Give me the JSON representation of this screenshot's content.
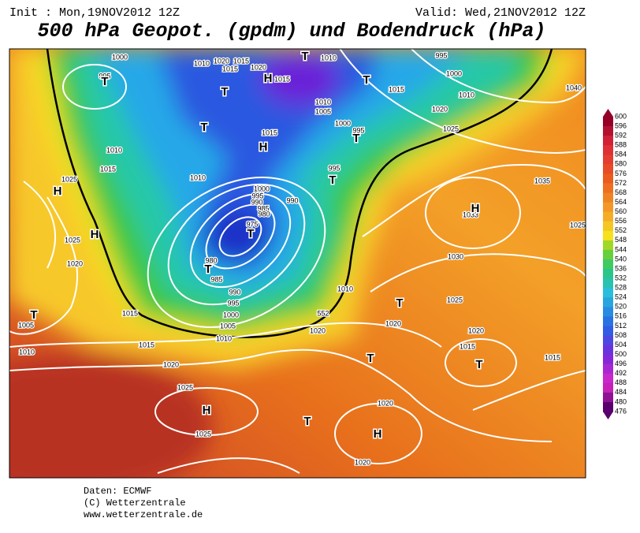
{
  "header": {
    "init": "Init : Mon,19NOV2012 12Z",
    "valid": "Valid: Wed,21NOV2012 12Z",
    "title": "500 hPa Geopot. (gpdm) und Bodendruck (hPa)"
  },
  "map": {
    "isobar_labels": [
      "1000",
      "995",
      "1010",
      "1020",
      "1015",
      "1015",
      "1020",
      "1015",
      "1010",
      "995",
      "1000",
      "1015",
      "1010",
      "1020",
      "1025",
      "1040",
      "1010",
      "1005",
      "1000",
      "995",
      "1015",
      "1010",
      "1015",
      "1025",
      "995",
      "1000",
      "995",
      "990",
      "985",
      "980",
      "975",
      "990",
      "1010",
      "980",
      "985",
      "990",
      "995",
      "1000",
      "1005",
      "1010",
      "1020",
      "1025",
      "1015",
      "1005",
      "1010",
      "1015",
      "1020",
      "1025",
      "1025",
      "1020",
      "1020",
      "1010",
      "1020",
      "1020",
      "1025",
      "1020",
      "1015",
      "1015",
      "1030",
      "1035",
      "1033",
      "1025"
    ],
    "centers": [
      "T",
      "T",
      "T",
      "T",
      "T",
      "H",
      "H",
      "T",
      "T",
      "H",
      "H",
      "T",
      "T",
      "T",
      "T",
      "T",
      "T",
      "H",
      "T",
      "H",
      "H"
    ],
    "contour_label": "552"
  },
  "colorbar": {
    "labels": [
      600,
      596,
      592,
      588,
      584,
      580,
      576,
      572,
      568,
      564,
      560,
      556,
      552,
      548,
      544,
      540,
      536,
      532,
      528,
      524,
      520,
      516,
      512,
      508,
      504,
      500,
      496,
      492,
      488,
      484,
      480,
      476
    ]
  },
  "footer": {
    "source": "Daten: ECMWF",
    "copyright": "(C) Wetterzentrale",
    "url": "www.wetterzentrale.de"
  }
}
